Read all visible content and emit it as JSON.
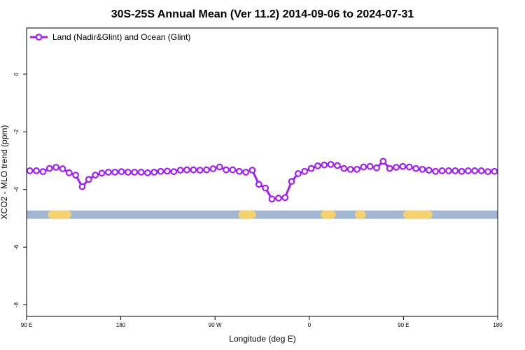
{
  "chart_data": {
    "type": "line",
    "title": "30S-25S Annual Mean (Ver 11.2)   2014-09-06 to 2024-07-31",
    "xlabel": "Longitude (deg E)",
    "ylabel": "XCO2 - MLO trend (ppm)",
    "xlim": [
      90,
      450
    ],
    "ylim": [
      -8.4,
      1.6
    ],
    "x_ticks": [
      {
        "value": 90,
        "label": "90 E"
      },
      {
        "value": 162,
        "label": "180"
      },
      {
        "value": 234,
        "label": "90 W"
      },
      {
        "value": 306,
        "label": "0"
      },
      {
        "value": 378,
        "label": "90 E"
      },
      {
        "value": 450,
        "label": "180"
      }
    ],
    "y_ticks": [
      {
        "value": 0,
        "label": "0"
      },
      {
        "value": -2,
        "label": "-2"
      },
      {
        "value": -4,
        "label": "-4"
      },
      {
        "value": -6,
        "label": "-6"
      },
      {
        "value": -8,
        "label": "-8"
      }
    ],
    "legend": {
      "position": "top-left"
    },
    "series": [
      {
        "name": "Land (Nadir&Glint) and Ocean (Glint)",
        "color": "#a020f0",
        "x": [
          92.5,
          97.5,
          102.5,
          107.5,
          112.5,
          117.5,
          122.5,
          127.5,
          132.5,
          137.5,
          142.5,
          147.5,
          152.5,
          157.5,
          162.5,
          167.5,
          172.5,
          177.5,
          182.5,
          187.5,
          192.5,
          197.5,
          202.5,
          207.5,
          212.5,
          217.5,
          222.5,
          227.5,
          232.5,
          237.5,
          242.5,
          247.5,
          252.5,
          257.5,
          262.5,
          267.5,
          272.5,
          277.5,
          282.5,
          287.5,
          292.5,
          297.5,
          302.5,
          307.5,
          312.5,
          317.5,
          322.5,
          327.5,
          332.5,
          337.5,
          342.5,
          347.5,
          352.5,
          357.5,
          362.5,
          367.5,
          372.5,
          377.5,
          382.5,
          387.5,
          392.5,
          397.5,
          402.5,
          407.5,
          412.5,
          417.5,
          422.5,
          427.5,
          432.5,
          437.5,
          442.5,
          447.5
        ],
        "values": [
          -3.35,
          -3.35,
          -3.38,
          -3.27,
          -3.23,
          -3.28,
          -3.42,
          -3.5,
          -3.9,
          -3.65,
          -3.5,
          -3.43,
          -3.4,
          -3.4,
          -3.38,
          -3.4,
          -3.4,
          -3.4,
          -3.42,
          -3.4,
          -3.37,
          -3.36,
          -3.38,
          -3.33,
          -3.32,
          -3.32,
          -3.33,
          -3.32,
          -3.28,
          -3.22,
          -3.32,
          -3.32,
          -3.37,
          -3.4,
          -3.33,
          -3.82,
          -3.95,
          -4.33,
          -4.3,
          -4.28,
          -3.72,
          -3.45,
          -3.37,
          -3.27,
          -3.18,
          -3.15,
          -3.13,
          -3.17,
          -3.27,
          -3.3,
          -3.3,
          -3.22,
          -3.2,
          -3.25,
          -3.02,
          -3.27,
          -3.23,
          -3.2,
          -3.22,
          -3.27,
          -3.3,
          -3.33,
          -3.37,
          -3.35,
          -3.35,
          -3.35,
          -3.37,
          -3.35,
          -3.35,
          -3.35,
          -3.38,
          -3.37
        ]
      }
    ],
    "band": {
      "y": -4.87,
      "base_color": "#a2b7d4",
      "highlight_color": "#f5d26e",
      "highlight_ranges": [
        [
          109.5,
          121
        ],
        [
          255,
          262
        ],
        [
          318,
          323
        ],
        [
          344,
          346
        ],
        [
          381,
          397
        ]
      ]
    }
  }
}
